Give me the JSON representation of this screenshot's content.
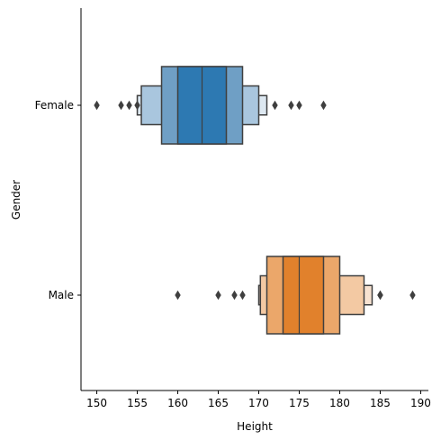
{
  "chart_data": {
    "type": "boxen",
    "title": "",
    "xlabel": "Height",
    "ylabel": "Gender",
    "xlim": [
      148.05,
      190.95
    ],
    "xticks": [
      150,
      155,
      160,
      165,
      170,
      175,
      180,
      185,
      190
    ],
    "grid": false,
    "legend": "none",
    "series": [
      {
        "name": "Female",
        "color": "#1f77b4",
        "median": 163,
        "boxes": [
          {
            "low": 160,
            "high": 166,
            "fill": "#2d79b2"
          },
          {
            "low": 158,
            "high": 168,
            "fill": "#6f9fc5"
          },
          {
            "low": 155.5,
            "high": 170,
            "fill": "#a9c6de"
          },
          {
            "low": 155,
            "high": 171,
            "fill": "#dde8f1"
          }
        ],
        "outliers": [
          150,
          153,
          154,
          155,
          172,
          174,
          175,
          178
        ]
      },
      {
        "name": "Male",
        "color": "#ff7f0e",
        "median": 175,
        "boxes": [
          {
            "low": 173,
            "high": 178,
            "fill": "#e1812c"
          },
          {
            "low": 171,
            "high": 180,
            "fill": "#eba76a"
          },
          {
            "low": 170.2,
            "high": 183,
            "fill": "#f3c9a3"
          },
          {
            "low": 170,
            "high": 184,
            "fill": "#f7e2d1"
          }
        ],
        "outliers": [
          160,
          165,
          167,
          168,
          185,
          185,
          189
        ]
      }
    ]
  }
}
